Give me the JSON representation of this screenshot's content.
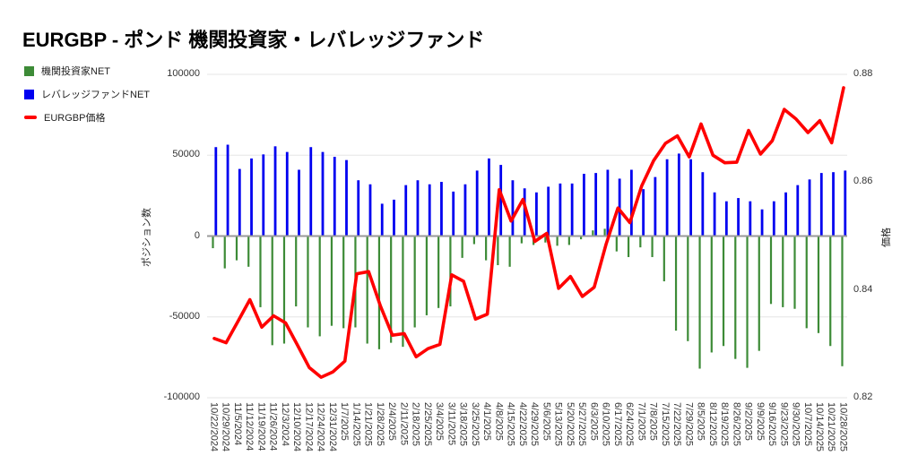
{
  "chart_data": {
    "type": "combo",
    "title": "EURGBP - ポンド 機関投資家・レバレッジファンド",
    "grid": true,
    "legend_position": "top-left",
    "categories": [
      "10/22/2024",
      "10/29/2024",
      "11/5/2024",
      "11/12/2024",
      "11/19/2024",
      "11/26/2024",
      "12/3/2024",
      "12/10/2024",
      "12/17/2024",
      "12/24/2024",
      "12/31/2024",
      "1/7/2025",
      "1/14/2025",
      "1/21/2025",
      "1/28/2025",
      "2/4/2025",
      "2/11/2025",
      "2/18/2025",
      "2/25/2025",
      "3/4/2025",
      "3/11/2025",
      "3/18/2025",
      "3/25/2025",
      "4/1/2025",
      "4/8/2025",
      "4/15/2025",
      "4/22/2025",
      "4/29/2025",
      "5/6/2025",
      "5/13/2025",
      "5/20/2025",
      "5/27/2025",
      "6/3/2025",
      "6/10/2025",
      "6/17/2025",
      "6/24/2025",
      "7/1/2025",
      "7/8/2025",
      "7/15/2025",
      "7/22/2025",
      "7/29/2025",
      "8/5/2025",
      "8/12/2025",
      "8/19/2025",
      "8/26/2025",
      "9/2/2025",
      "9/9/2025",
      "9/16/2025",
      "9/23/2025",
      "9/30/2025",
      "10/7/2025",
      "10/14/2025",
      "10/21/2025",
      "10/28/2025"
    ],
    "series": [
      {
        "name": "機関投資家NET",
        "type": "bar",
        "axis": "left",
        "color": "#3d8b37",
        "marker": "square",
        "values": [
          -7500,
          -20000,
          -15000,
          -19000,
          -44000,
          -67500,
          -66500,
          -43500,
          -56500,
          -62000,
          -55500,
          -57000,
          -56500,
          -66500,
          -70000,
          -66000,
          -68500,
          -56500,
          -49000,
          -44500,
          -43500,
          -13500,
          -5000,
          -15000,
          -18000,
          -19000,
          -4500,
          -5500,
          -4000,
          -6000,
          -5500,
          -2000,
          3500,
          4500,
          -9500,
          -13000,
          -7000,
          -13000,
          -28000,
          -58500,
          -65000,
          -82000,
          -72000,
          -68000,
          -76000,
          -81500,
          -71000,
          -42000,
          -44000,
          -45000,
          -57000,
          -60000,
          -68000,
          -80500
        ]
      },
      {
        "name": "レバレッジファンドNET",
        "type": "bar",
        "axis": "left",
        "color": "#0000f0",
        "marker": "square",
        "values": [
          55000,
          56500,
          41500,
          48000,
          50500,
          55500,
          52000,
          41000,
          55000,
          52000,
          49000,
          47000,
          34500,
          32000,
          20000,
          22500,
          31500,
          34500,
          32000,
          33500,
          27500,
          32000,
          40500,
          48000,
          44000,
          34500,
          29500,
          27000,
          30500,
          32500,
          32500,
          38500,
          39000,
          41000,
          35500,
          41000,
          29000,
          36500,
          47500,
          51000,
          47500,
          39500,
          27000,
          21500,
          23500,
          21500,
          16500,
          21500,
          27000,
          31500,
          35000,
          39000,
          39500,
          40500
        ]
      },
      {
        "name": "EURGBP価格",
        "type": "line",
        "axis": "right",
        "color": "#ff0000",
        "marker": "line",
        "values": [
          0.831,
          0.8302,
          0.8342,
          0.8382,
          0.8331,
          0.8352,
          0.8339,
          0.8298,
          0.8256,
          0.8238,
          0.8248,
          0.8268,
          0.843,
          0.8434,
          0.837,
          0.8316,
          0.8319,
          0.8276,
          0.8291,
          0.8299,
          0.8428,
          0.8416,
          0.8346,
          0.8355,
          0.8586,
          0.8528,
          0.8568,
          0.849,
          0.8505,
          0.8403,
          0.8425,
          0.8388,
          0.8405,
          0.8485,
          0.8552,
          0.8525,
          0.8593,
          0.864,
          0.8672,
          0.8686,
          0.8647,
          0.8708,
          0.865,
          0.8636,
          0.8637,
          0.8696,
          0.8652,
          0.8677,
          0.8735,
          0.8717,
          0.8692,
          0.8714,
          0.8673,
          0.8775
        ]
      }
    ],
    "left_axis": {
      "title": "ポジション数",
      "min": -100000,
      "max": 100000,
      "ticks": [
        "100000",
        "50000",
        "0",
        "-50000",
        "-100000"
      ],
      "tick_values": [
        100000,
        50000,
        0,
        -50000,
        -100000
      ]
    },
    "right_axis": {
      "title": "価格",
      "min": 0.82,
      "max": 0.88,
      "ticks": [
        "0.88",
        "0.86",
        "0.84",
        "0.82"
      ],
      "tick_values": [
        0.88,
        0.86,
        0.84,
        0.82
      ]
    },
    "colors": {
      "grid": "#e6e6e6",
      "zero_line": "#9a9a9a",
      "text": "#333333",
      "title": "#000000"
    }
  }
}
